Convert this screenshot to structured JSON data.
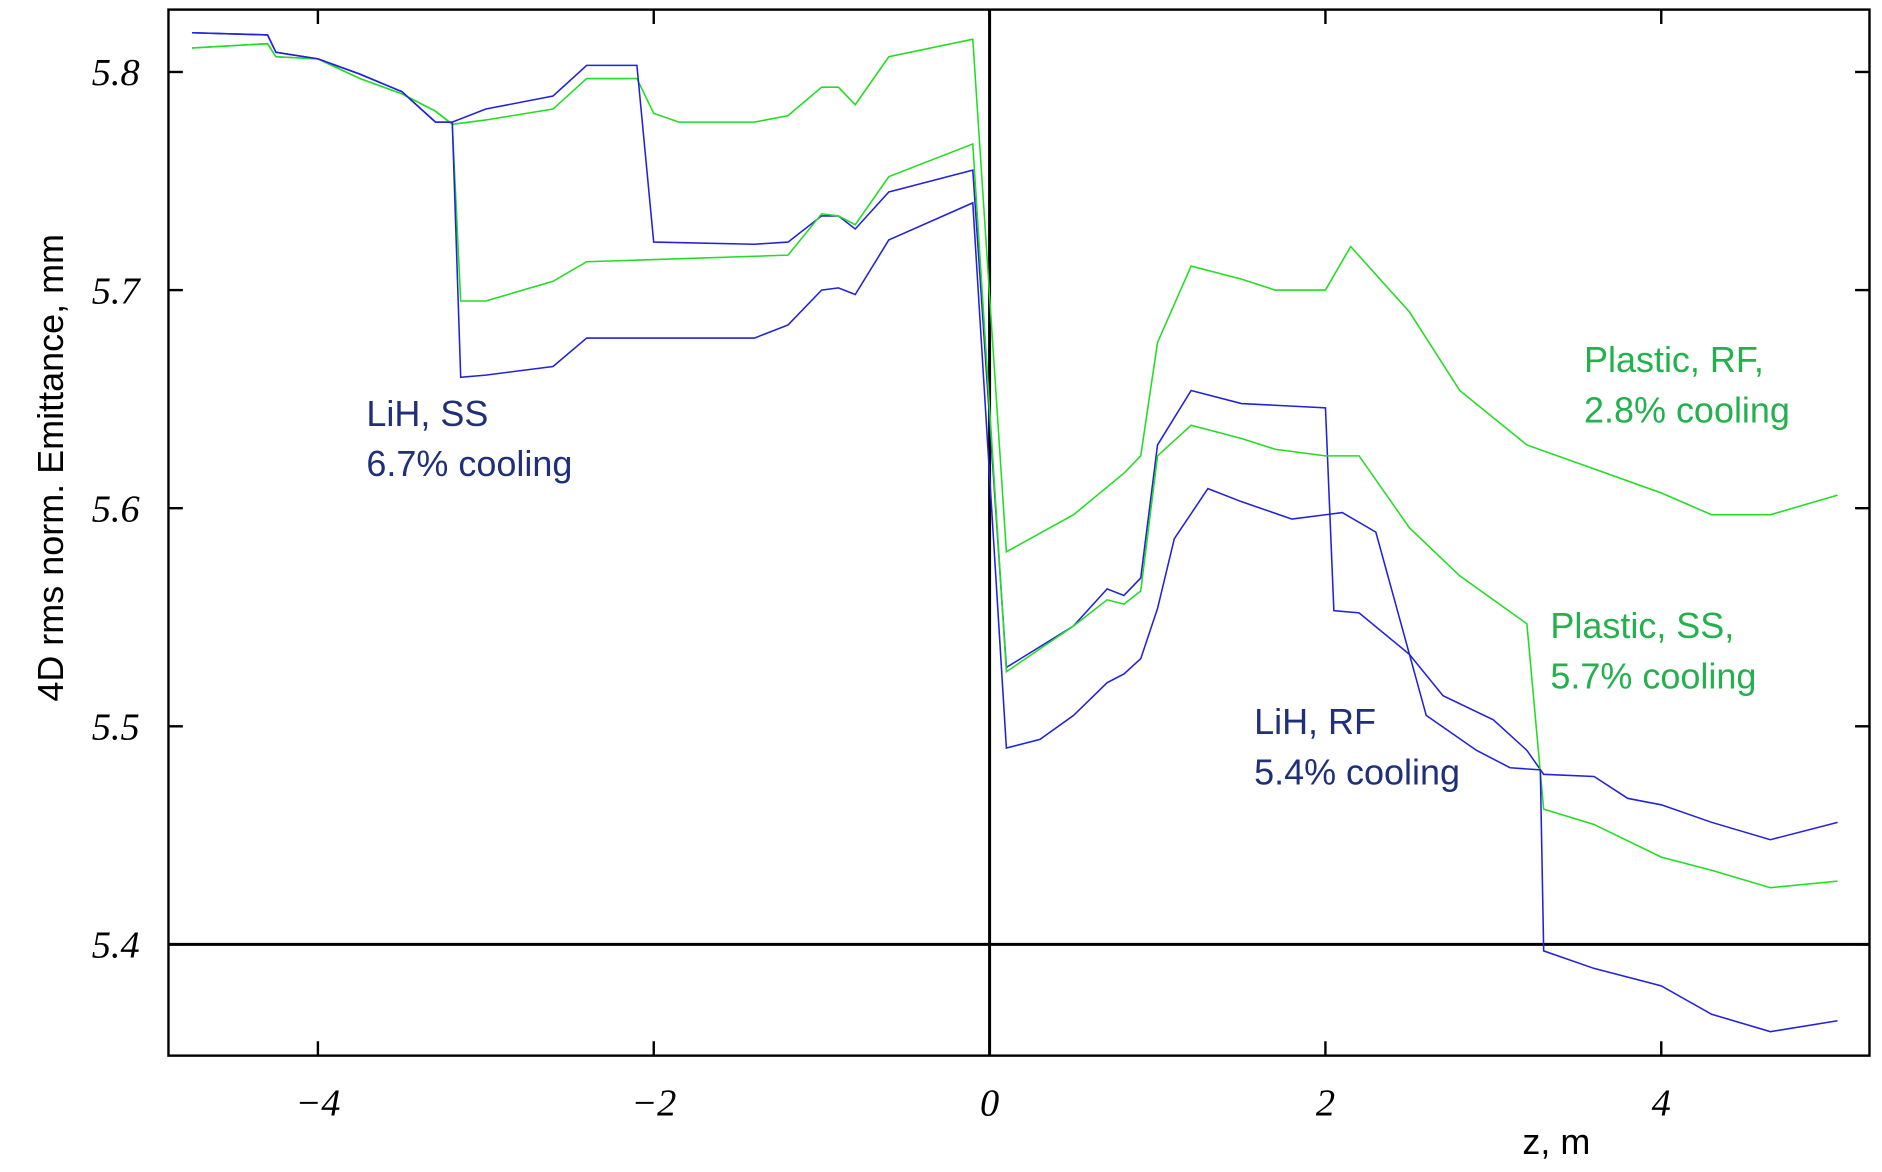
{
  "chart_data": {
    "type": "line",
    "y_label": "4D rms norm. Emittance, mm",
    "x_label": "z, m",
    "xlim": [
      -4.89,
      5.24
    ],
    "ylim": [
      5.349,
      5.8286
    ],
    "xticks": [
      {
        "value": -4,
        "label": "−4"
      },
      {
        "value": -2,
        "label": "−2"
      },
      0,
      2,
      4
    ],
    "yticks": [
      5.4,
      5.5,
      5.6,
      5.7,
      5.8
    ],
    "axis_lines": {
      "x": 0,
      "y": 5.4
    },
    "series": [
      {
        "color": "#22dd22",
        "x": [
          -4.75,
          -4.3,
          -4.25,
          -4.0,
          -3.75,
          -3.5,
          -3.3,
          -3.2,
          -3.0,
          -2.6,
          -2.4,
          -2.1,
          -2.0,
          -1.85,
          -1.4,
          -1.2,
          -1.0,
          -0.9,
          -0.8,
          -0.6,
          -0.1,
          0.1,
          0.5,
          0.8,
          0.9,
          1.0,
          1.2,
          1.5,
          1.7,
          2.0,
          2.15,
          2.5,
          2.8,
          3.2,
          3.6,
          4.0,
          4.3,
          4.65,
          5.05
        ],
        "values": [
          5.811,
          5.813,
          5.807,
          5.806,
          5.797,
          5.79,
          5.782,
          5.776,
          5.778,
          5.783,
          5.797,
          5.797,
          5.781,
          5.777,
          5.777,
          5.78,
          5.793,
          5.793,
          5.785,
          5.807,
          5.815,
          5.58,
          5.597,
          5.616,
          5.624,
          5.676,
          5.711,
          5.705,
          5.7,
          5.7,
          5.72,
          5.69,
          5.654,
          5.629,
          5.618,
          5.607,
          5.597,
          5.597,
          5.606
        ]
      },
      {
        "color": "#2222dd",
        "x": [
          -4.75,
          -4.3,
          -4.25,
          -4.0,
          -3.75,
          -3.5,
          -3.3,
          -3.2,
          -3.0,
          -2.6,
          -2.4,
          -2.1,
          -2.0,
          -1.4,
          -1.2,
          -1.0,
          -0.9,
          -0.8,
          -0.6,
          -0.1,
          0.1,
          0.5,
          0.7,
          0.8,
          0.9,
          1.0,
          1.2,
          1.5,
          2.0,
          2.05,
          2.2,
          2.5,
          2.7,
          3.0,
          3.2,
          3.3,
          3.6,
          3.8,
          4.0,
          4.3,
          4.65,
          5.05
        ],
        "values": [
          5.818,
          5.817,
          5.809,
          5.806,
          5.799,
          5.791,
          5.777,
          5.777,
          5.783,
          5.789,
          5.803,
          5.803,
          5.722,
          5.721,
          5.722,
          5.734,
          5.734,
          5.728,
          5.745,
          5.755,
          5.527,
          5.546,
          5.563,
          5.56,
          5.568,
          5.629,
          5.654,
          5.648,
          5.646,
          5.553,
          5.552,
          5.533,
          5.514,
          5.503,
          5.489,
          5.478,
          5.477,
          5.467,
          5.464,
          5.456,
          5.448,
          5.456
        ]
      },
      {
        "color": "#22dd22",
        "x": [
          -4.75,
          -4.3,
          -4.25,
          -4.0,
          -3.75,
          -3.5,
          -3.3,
          -3.2,
          -3.15,
          -3.0,
          -2.6,
          -2.4,
          -1.2,
          -1.0,
          -0.9,
          -0.8,
          -0.6,
          -0.1,
          0.1,
          0.5,
          0.7,
          0.8,
          0.9,
          1.0,
          1.2,
          1.5,
          1.7,
          2.0,
          2.2,
          2.5,
          2.8,
          3.2,
          3.3,
          3.6,
          4.0,
          4.3,
          4.65,
          5.05
        ],
        "values": [
          5.811,
          5.813,
          5.807,
          5.806,
          5.797,
          5.79,
          5.782,
          5.776,
          5.695,
          5.695,
          5.704,
          5.713,
          5.716,
          5.735,
          5.734,
          5.73,
          5.752,
          5.767,
          5.525,
          5.546,
          5.558,
          5.556,
          5.562,
          5.624,
          5.638,
          5.632,
          5.627,
          5.624,
          5.624,
          5.591,
          5.569,
          5.547,
          5.462,
          5.455,
          5.44,
          5.434,
          5.426,
          5.429
        ]
      },
      {
        "color": "#2222dd",
        "x": [
          -4.75,
          -4.3,
          -4.25,
          -4.0,
          -3.75,
          -3.5,
          -3.3,
          -3.2,
          -3.15,
          -3.0,
          -2.6,
          -2.4,
          -1.4,
          -1.2,
          -1.0,
          -0.9,
          -0.8,
          -0.6,
          -0.1,
          0.1,
          0.3,
          0.5,
          0.7,
          0.8,
          0.9,
          1.0,
          1.1,
          1.3,
          1.5,
          1.8,
          2.0,
          2.1,
          2.3,
          2.6,
          2.9,
          3.1,
          3.28,
          3.3,
          3.6,
          4.0,
          4.3,
          4.65,
          5.05
        ],
        "values": [
          5.818,
          5.817,
          5.809,
          5.806,
          5.799,
          5.791,
          5.777,
          5.777,
          5.66,
          5.661,
          5.665,
          5.678,
          5.678,
          5.684,
          5.7,
          5.701,
          5.698,
          5.723,
          5.74,
          5.49,
          5.494,
          5.505,
          5.52,
          5.524,
          5.531,
          5.554,
          5.586,
          5.609,
          5.603,
          5.595,
          5.597,
          5.598,
          5.589,
          5.505,
          5.489,
          5.481,
          5.48,
          5.397,
          5.389,
          5.381,
          5.368,
          5.36,
          5.365
        ]
      }
    ],
    "annotations": [
      {
        "lines": [
          "LiH, SS",
          "6.7% cooling"
        ],
        "color": "#1f2f7a"
      },
      {
        "lines": [
          "LiH, RF",
          "5.4% cooling"
        ],
        "color": "#1f2f7a"
      },
      {
        "lines": [
          "Plastic, RF,",
          "2.8% cooling"
        ],
        "color": "#22b14c"
      },
      {
        "lines": [
          "Plastic, SS,",
          "5.7% cooling"
        ],
        "color": "#22b14c"
      }
    ]
  }
}
